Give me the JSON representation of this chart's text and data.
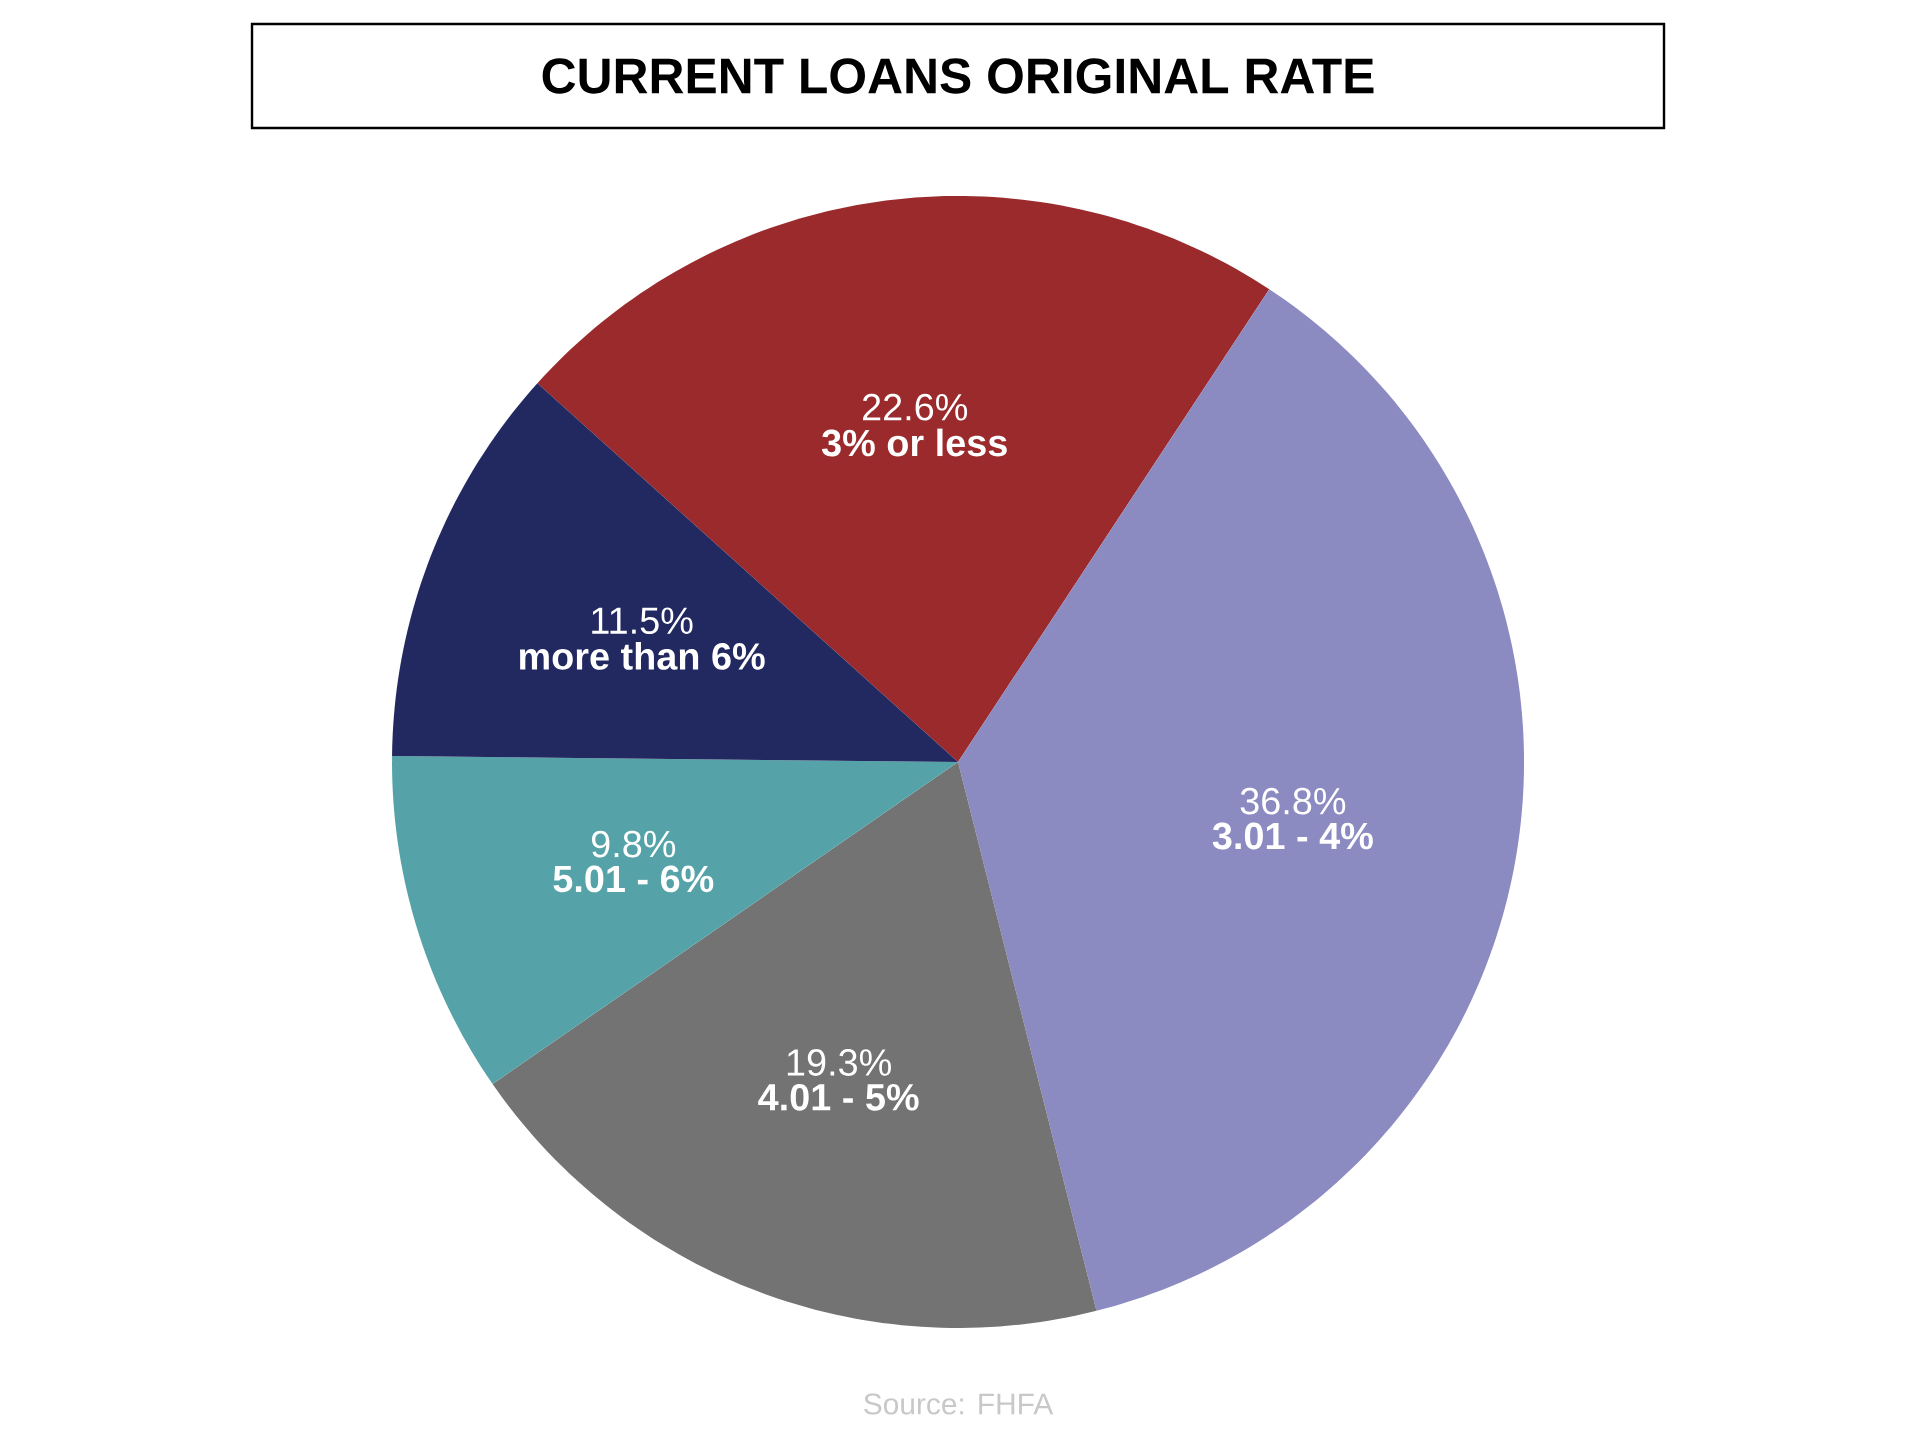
{
  "chart_data": {
    "type": "pie",
    "title": "CURRENT LOANS ORIGINAL RATE",
    "categories": [
      "3% or less",
      "3.01 - 4%",
      "4.01 - 5%",
      "5.01 - 6%",
      "more than 6%"
    ],
    "values": [
      22.6,
      36.8,
      19.3,
      9.8,
      11.5
    ],
    "value_labels": [
      "22.6%",
      "36.8%",
      "19.3%",
      "9.8%",
      "11.5%"
    ],
    "colors": [
      "#9b2a2c",
      "#8b8ac1",
      "#737373",
      "#55a3a8",
      "#222860"
    ],
    "annotations": [
      "Source: FHFA"
    ]
  }
}
